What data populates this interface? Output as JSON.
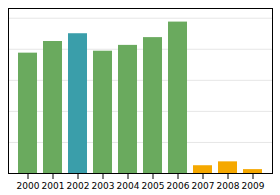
{
  "chart_data": {
    "type": "bar",
    "categories": [
      "2000",
      "2001",
      "2002",
      "2003",
      "2004",
      "2005",
      "2006",
      "2007",
      "2008",
      "2009"
    ],
    "values": [
      62,
      68,
      72,
      63,
      66,
      70,
      78,
      4,
      6,
      2
    ],
    "colors": [
      "#6aaa5e",
      "#6aaa5e",
      "#3a9eaa",
      "#6aaa5e",
      "#6aaa5e",
      "#6aaa5e",
      "#6aaa5e",
      "#f5a800",
      "#f5a800",
      "#f5a800"
    ],
    "ylim": [
      0,
      85
    ],
    "yticks": [
      0,
      16,
      32,
      48,
      64,
      80
    ],
    "grid": true,
    "tick_labels": "x"
  }
}
